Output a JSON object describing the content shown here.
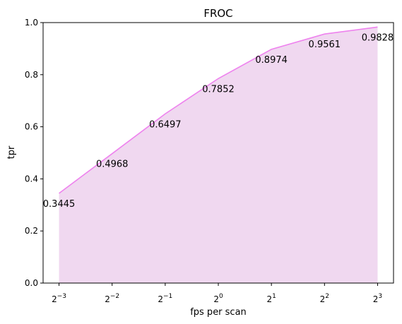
{
  "chart_data": {
    "type": "area",
    "title": "FROC",
    "xlabel": "fps per scan",
    "ylabel": "tpr",
    "x_scale": "log2",
    "x": [
      0.125,
      0.25,
      0.5,
      1,
      2,
      4,
      8
    ],
    "x_tick_labels": [
      {
        "base": "2",
        "exp": "−3"
      },
      {
        "base": "2",
        "exp": "−2"
      },
      {
        "base": "2",
        "exp": "−1"
      },
      {
        "base": "2",
        "exp": "0"
      },
      {
        "base": "2",
        "exp": "1"
      },
      {
        "base": "2",
        "exp": "2"
      },
      {
        "base": "2",
        "exp": "3"
      }
    ],
    "series": [
      {
        "values": [
          0.3445,
          0.4968,
          0.6497,
          0.7852,
          0.8974,
          0.9561,
          0.9828
        ],
        "data_labels": [
          "0.3445",
          "0.4968",
          "0.6497",
          "0.7852",
          "0.8974",
          "0.9561",
          "0.9828"
        ],
        "line_color": "#ee82ee",
        "fill_color": "#f0d8f0"
      }
    ],
    "ylim": [
      0,
      1.0
    ],
    "y_ticks": [
      "0.0",
      "0.2",
      "0.4",
      "0.6",
      "0.8",
      "1.0"
    ],
    "grid": false,
    "legend": "none"
  }
}
